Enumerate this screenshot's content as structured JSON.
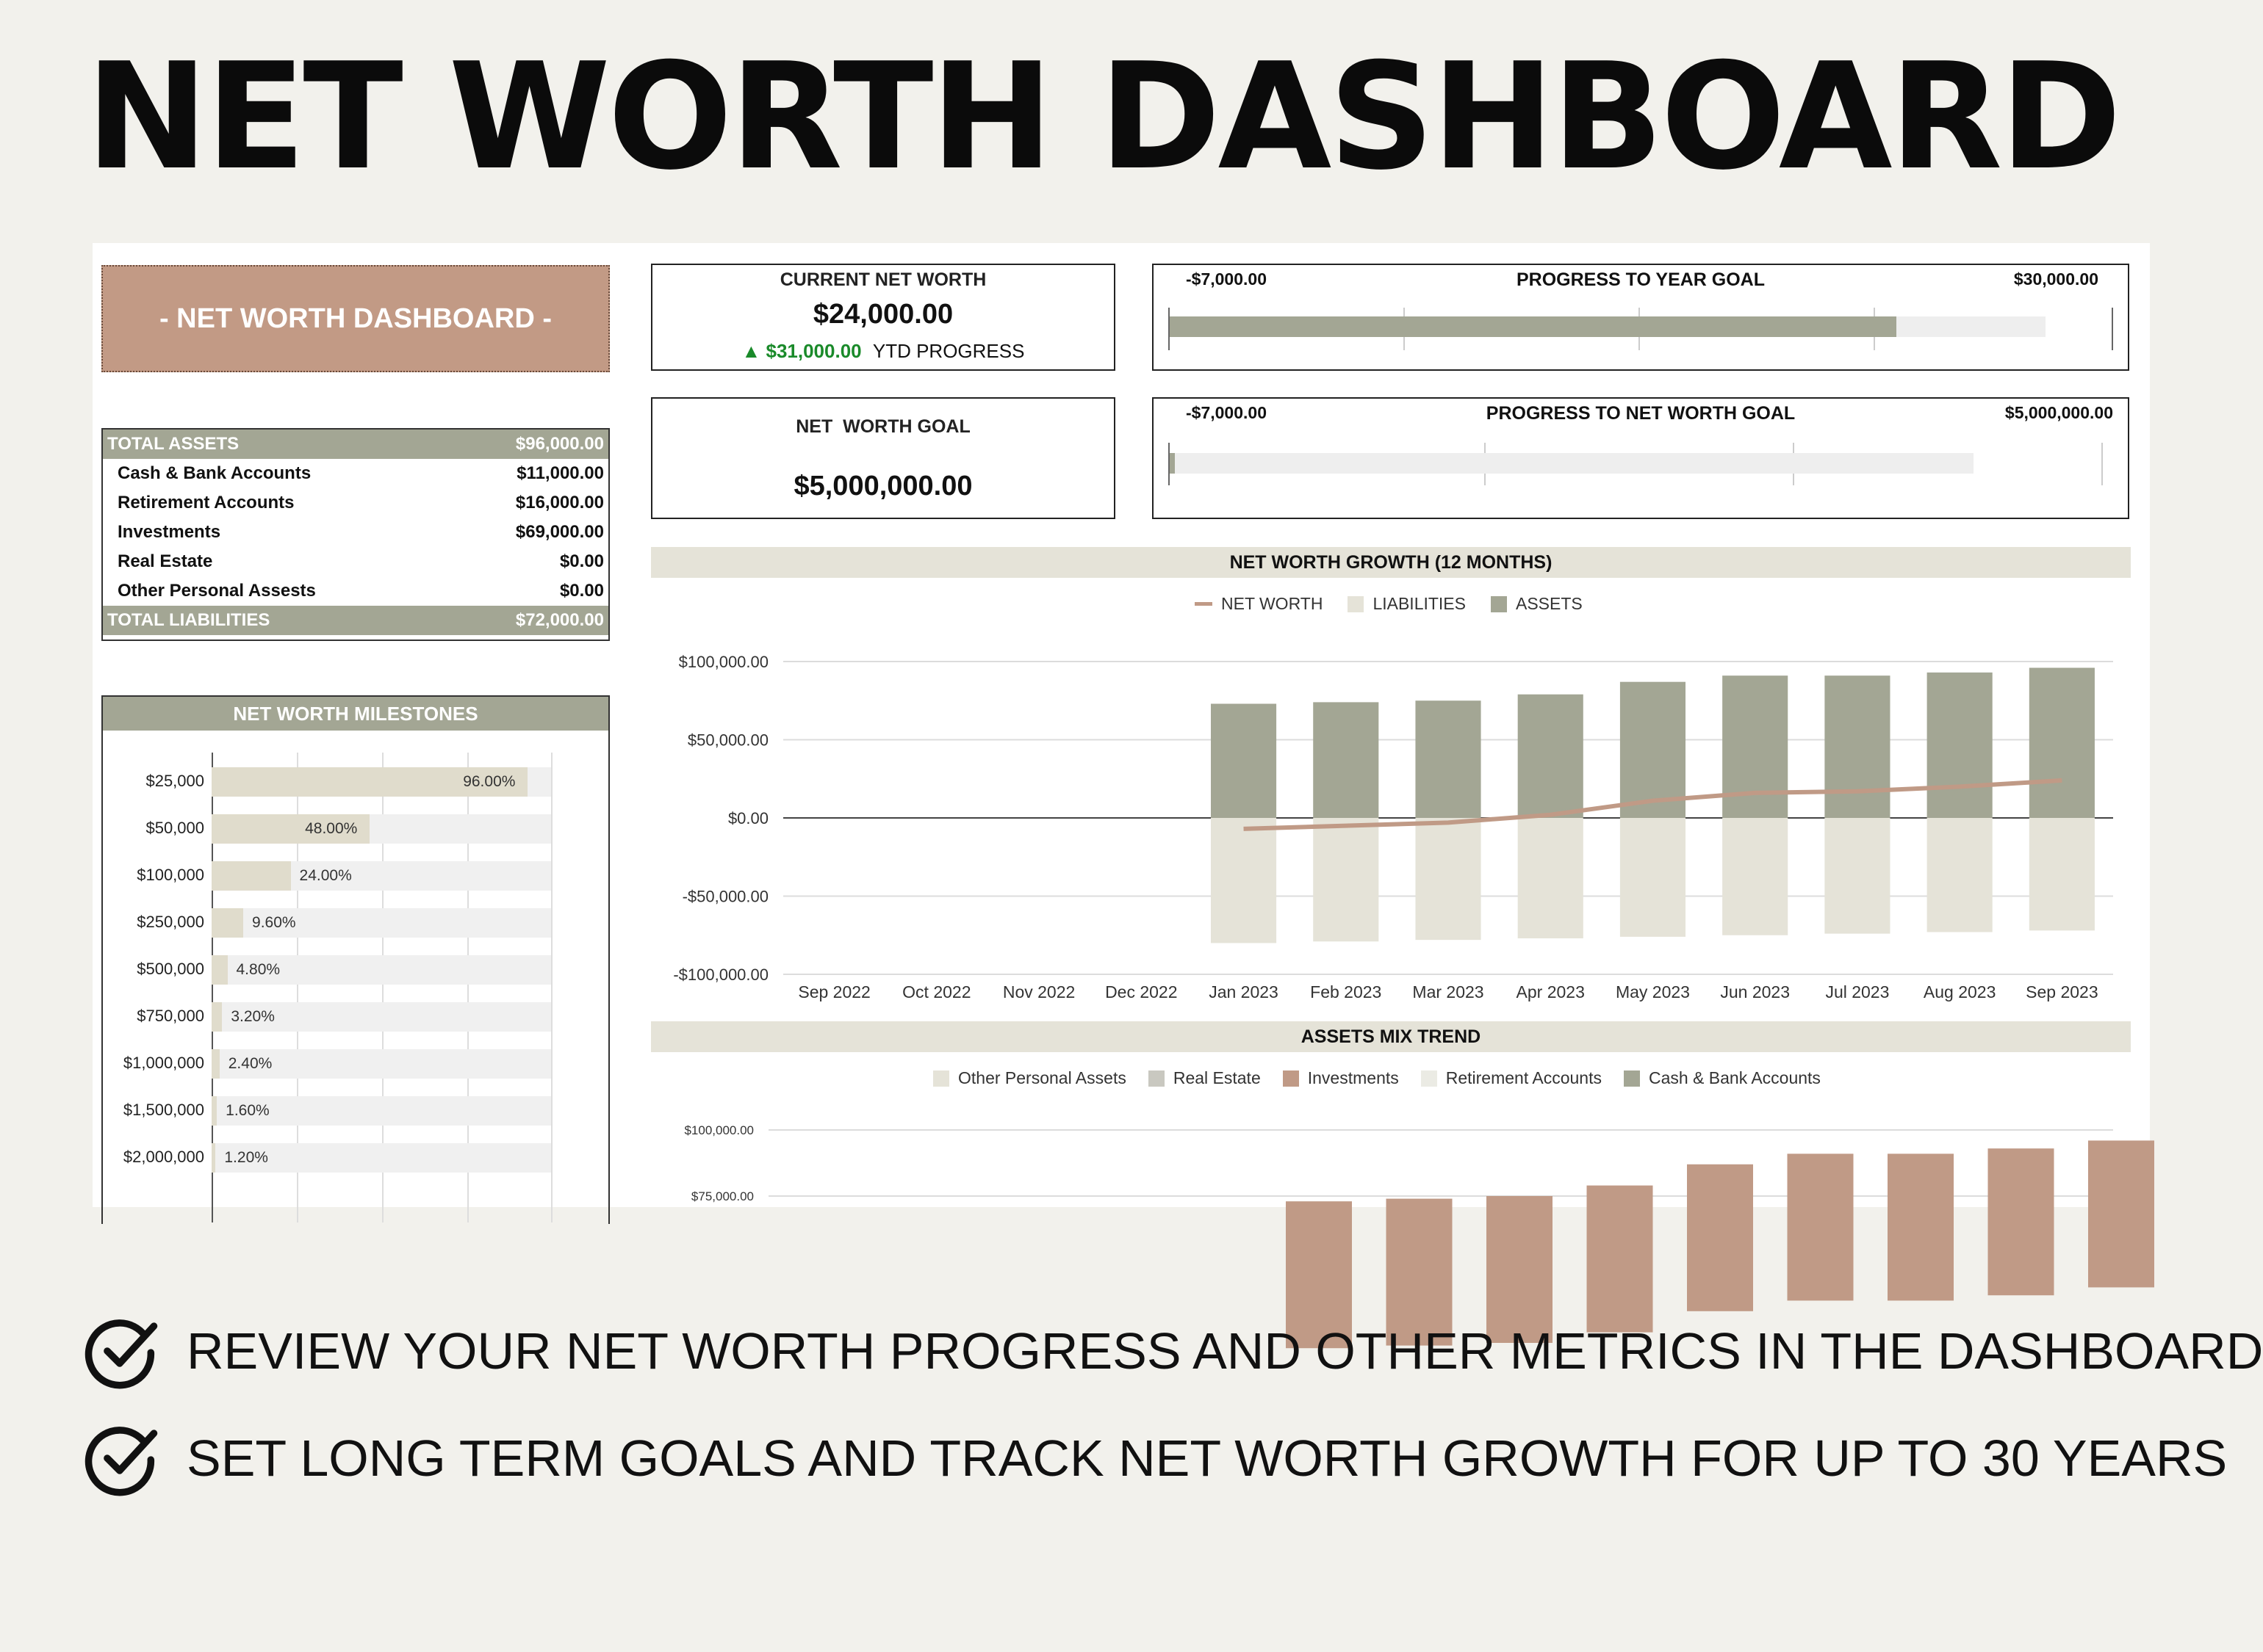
{
  "hero_title": "NET WORTH DASHBOARD",
  "banner_title": "- NET WORTH DASHBOARD -",
  "current_net_worth": {
    "label": "CURRENT NET WORTH",
    "value": "$24,000.00",
    "ytd_value": "▲ $31,000.00",
    "ytd_label": "YTD PROGRESS"
  },
  "net_worth_goal": {
    "label": "NET  WORTH GOAL",
    "value": "$5,000,000.00"
  },
  "year_goal_progress": {
    "title": "PROGRESS TO YEAR GOAL",
    "min": "-$7,000.00",
    "max": "$30,000.00",
    "fraction": 0.83
  },
  "net_worth_goal_progress": {
    "title": "PROGRESS TO NET WORTH GOAL",
    "min": "-$7,000.00",
    "max": "$5,000,000.00",
    "fraction": 0.006
  },
  "assets_table": {
    "total_assets_label": "TOTAL ASSETS",
    "total_assets_value": "$96,000.00",
    "rows": [
      {
        "label": "Cash & Bank Accounts",
        "value": "$11,000.00"
      },
      {
        "label": "Retirement Accounts",
        "value": "$16,000.00"
      },
      {
        "label": "Investments",
        "value": "$69,000.00"
      },
      {
        "label": "Real Estate",
        "value": "$0.00"
      },
      {
        "label": "Other Personal Assests",
        "value": "$0.00"
      }
    ],
    "total_liabilities_label": "TOTAL LIABILITIES",
    "total_liabilities_value": "$72,000.00"
  },
  "milestones": {
    "title": "NET WORTH MILESTONES",
    "items": [
      {
        "label": "$25,000",
        "pct": "96.00%",
        "value": 0.96
      },
      {
        "label": "$50,000",
        "pct": "48.00%",
        "value": 0.48
      },
      {
        "label": "$100,000",
        "pct": "24.00%",
        "value": 0.24
      },
      {
        "label": "$250,000",
        "pct": "9.60%",
        "value": 0.096
      },
      {
        "label": "$500,000",
        "pct": "4.80%",
        "value": 0.048
      },
      {
        "label": "$750,000",
        "pct": "3.20%",
        "value": 0.032
      },
      {
        "label": "$1,000,000",
        "pct": "2.40%",
        "value": 0.024
      },
      {
        "label": "$1,500,000",
        "pct": "1.60%",
        "value": 0.016
      },
      {
        "label": "$2,000,000",
        "pct": "1.20%",
        "value": 0.012
      }
    ]
  },
  "chart_data": [
    {
      "type": "bar",
      "title": "NET WORTH GROWTH (12 MONTHS)",
      "categories": [
        "Sep 2022",
        "Oct 2022",
        "Nov 2022",
        "Dec 2022",
        "Jan 2023",
        "Feb 2023",
        "Mar 2023",
        "Apr 2023",
        "May 2023",
        "Jun 2023",
        "Jul 2023",
        "Aug 2023",
        "Sep 2023"
      ],
      "y_ticks": [
        "$100,000.00",
        "$50,000.00",
        "$0.00",
        "-$50,000.00",
        "-$100,000.00"
      ],
      "ylim": [
        -100000,
        100000
      ],
      "legend_position": "top",
      "series": [
        {
          "name": "NET WORTH",
          "kind": "line",
          "color": "#c09a86",
          "values": [
            null,
            null,
            null,
            null,
            -7000,
            -5000,
            -3000,
            2000,
            11000,
            16000,
            17000,
            20000,
            24000
          ]
        },
        {
          "name": "LIABILITIES",
          "kind": "bar",
          "color": "#e5e3d8",
          "values": [
            null,
            null,
            null,
            null,
            -80000,
            -79000,
            -78000,
            -77000,
            -76000,
            -75000,
            -74000,
            -73000,
            -72000
          ]
        },
        {
          "name": "ASSETS",
          "kind": "bar",
          "color": "#a3a694",
          "values": [
            null,
            null,
            null,
            null,
            73000,
            74000,
            75000,
            79000,
            87000,
            91000,
            91000,
            93000,
            96000
          ]
        }
      ]
    },
    {
      "type": "bar",
      "title": "ASSETS MIX TREND",
      "legend": [
        {
          "name": "Other Personal Assets",
          "color": "#e5e3d8"
        },
        {
          "name": "Real Estate",
          "color": "#c9c8c0"
        },
        {
          "name": "Investments",
          "color": "#c09a86"
        },
        {
          "name": "Retirement Accounts",
          "color": "#ebebe4"
        },
        {
          "name": "Cash & Bank Accounts",
          "color": "#a3a694"
        }
      ],
      "y_ticks": [
        "$100,000.00",
        "$75,000.00"
      ],
      "bar_tops": [
        73000,
        74000,
        75000,
        79000,
        87000,
        91000,
        91000,
        93000,
        96000
      ]
    }
  ],
  "bullets": [
    "REVIEW YOUR NET WORTH PROGRESS AND OTHER METRICS IN THE DASHBOARD",
    "SET LONG TERM GOALS AND TRACK NET WORTH GROWTH FOR UP TO 30 YEARS"
  ]
}
